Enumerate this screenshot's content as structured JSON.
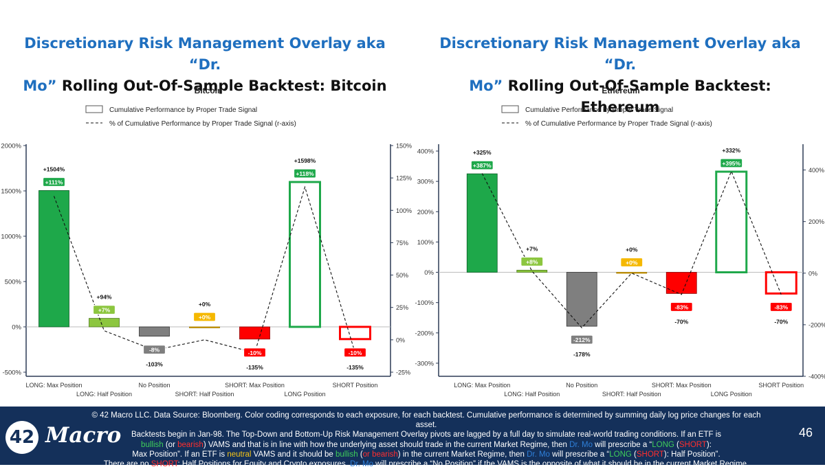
{
  "titles": {
    "left": {
      "blue_1": "Discretionary Risk Management Overlay aka “Dr.",
      "blue_2": "Mo”",
      "black": " Rolling Out-Of-Sample Backtest: Bitcoin"
    },
    "right": {
      "blue_1": "Discretionary Risk Management Overlay aka “Dr.",
      "blue_2": "Mo”",
      "black": " Rolling Out-Of-Sample Backtest: Ethereum"
    }
  },
  "chart_data": [
    {
      "type": "bar",
      "title": "Bitcoin",
      "legend": [
        "Cumulative Performance by Proper Trade Signal",
        "% of Cumulative Performance by Proper Trade Signal (r-axis)"
      ],
      "legend_position": "top-center",
      "categories": [
        "LONG: Max Position",
        "LONG: Half Position",
        "No Position",
        "SHORT: Half Position",
        "SHORT: Max Position",
        "LONG Position",
        "SHORT Position"
      ],
      "category_rows": [
        "bottom",
        "top",
        "bottom",
        "top",
        "bottom",
        "top",
        "bottom"
      ],
      "values": [
        1504,
        94,
        -103,
        0,
        -135,
        1598,
        -135
      ],
      "value_labels": [
        "+1504%",
        "+94%",
        "-103%",
        "+0%",
        "-135%",
        "+1598%",
        "-135%"
      ],
      "series_r": [
        111,
        7,
        -8,
        0,
        -10,
        118,
        -10
      ],
      "r_labels": [
        "+111%",
        "+7%",
        "-8%",
        "+0%",
        "-10%",
        "+118%",
        "-10%"
      ],
      "fills": [
        "#1ea84a",
        "#8cc63f",
        "#7f7f7f",
        "#f5b800",
        "#ff0000",
        "none",
        "none"
      ],
      "strokes": [
        "#0b5c25",
        "#4e7a1e",
        "#333333",
        "#9a7300",
        "#8b0000",
        "#1ea84a",
        "#ff0000"
      ],
      "ylim": [
        -500,
        2000
      ],
      "yticks": [
        -500,
        0,
        500,
        1000,
        1500,
        2000
      ],
      "ytick_labels": [
        "-500%",
        "0%",
        "500%",
        "1000%",
        "1500%",
        "2000%"
      ],
      "y2lim": [
        -25,
        150
      ],
      "y2ticks": [
        -25,
        0,
        25,
        50,
        75,
        100,
        125,
        150
      ],
      "y2tick_labels": [
        "-25%",
        "0%",
        "25%",
        "50%",
        "75%",
        "100%",
        "125%",
        "150%"
      ]
    },
    {
      "type": "bar",
      "title": "Ethereum",
      "legend": [
        "Cumulative Performance by Proper Trade Signal",
        "% of Cumulative Performance by Proper Trade Signal (r-axis)"
      ],
      "legend_position": "top-center",
      "categories": [
        "LONG: Max Position",
        "LONG: Half Position",
        "No Position",
        "SHORT: Half Position",
        "SHORT: Max Position",
        "LONG Position",
        "SHORT Position"
      ],
      "category_rows": [
        "bottom",
        "top",
        "bottom",
        "top",
        "bottom",
        "top",
        "bottom"
      ],
      "values": [
        325,
        7,
        -178,
        0,
        -70,
        332,
        -70
      ],
      "value_labels": [
        "+325%",
        "+7%",
        "-178%",
        "+0%",
        "-70%",
        "+332%",
        "-70%"
      ],
      "series_r": [
        387,
        8,
        -212,
        0,
        -83,
        395,
        -83
      ],
      "r_labels": [
        "+387%",
        "+8%",
        "-212%",
        "+0%",
        "-83%",
        "+395%",
        "-83%"
      ],
      "fills": [
        "#1ea84a",
        "#8cc63f",
        "#7f7f7f",
        "#f5b800",
        "#ff0000",
        "none",
        "none"
      ],
      "strokes": [
        "#0b5c25",
        "#4e7a1e",
        "#333333",
        "#9a7300",
        "#8b0000",
        "#1ea84a",
        "#ff0000"
      ],
      "ylim": [
        -350,
        400
      ],
      "yticks": [
        -300,
        -200,
        -100,
        0,
        100,
        200,
        300,
        400
      ],
      "ytick_labels": [
        "-300%",
        "-200%",
        "-100%",
        "0%",
        "100%",
        "200%",
        "300%",
        "400%"
      ],
      "y2lim": [
        -400,
        500
      ],
      "y2ticks": [
        -400,
        -200,
        0,
        200,
        400
      ],
      "y2tick_labels": [
        "-400%",
        "-200%",
        "0%",
        "200%",
        "400%"
      ]
    }
  ],
  "footer": {
    "line1": "© 42 Macro LLC. Data Source: Bloomberg. Color coding corresponds to each exposure, for each backtest. Cumulative performance is determined by summing daily log price changes for each asset.",
    "line2": "Backtests begin in Jan-98. The Top-Down and Bottom-Up Risk Management Overlay pivots are lagged by a full day to simulate real-world trading conditions. If an ETF is",
    "l3_bullish": "bullish",
    "l3_or1": " (or ",
    "l3_bearish": "bearish",
    "l3_mid": ") VAMS and that is in line with how the underlying asset should trade in the current Market Regime, then ",
    "l3_drmo": "Dr. Mo",
    "l3_prescribe": " will prescribe a “",
    "l3_long": "LONG",
    "l3_paren": " (",
    "l3_short": "SHORT",
    "l3_end": "):",
    "l4_start": "Max Position”. If an ETF is ",
    "l4_neutral": "neutral",
    "l4_mid": " VAMS and it should be ",
    "l4_bullish": "bullish",
    "l4_or": " (",
    "l4_bearish": "or bearish",
    "l4_mid2": ")  in the current Market Regime, then ",
    "l4_drmo": "Dr. Mo",
    "l4_prescribe": " will prescribe a “",
    "l4_long": "LONG",
    "l4_paren": " (",
    "l4_short": "SHORT",
    "l4_end": "): Half Position”.",
    "l5_start": "There are no ",
    "l5_short": "SHORT",
    "l5_mid": ": Half Positions for Equity and Crypto exposures. ",
    "l5_drmo": "Dr. Mo",
    "l5_end": " will prescribe a “No Position” if the VAMS is the opposite of what it should be in the current Market Regime.",
    "logo_number": "42",
    "logo_word": "Macro",
    "page_number": "46"
  }
}
